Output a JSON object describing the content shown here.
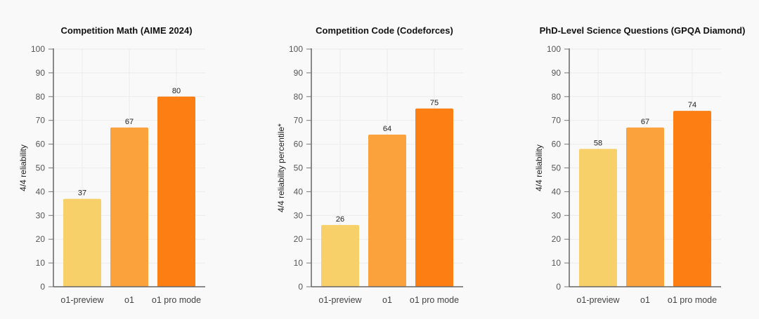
{
  "chart_data": [
    {
      "type": "bar",
      "title": "Competition Math (AIME 2024)",
      "ylabel": "4/4 reliability",
      "xlabel": "",
      "categories": [
        "o1-preview",
        "o1",
        "o1 pro mode"
      ],
      "values": [
        37,
        67,
        80
      ],
      "ylim": [
        0,
        100
      ],
      "yticks": [
        0,
        10,
        20,
        30,
        40,
        50,
        60,
        70,
        80,
        90,
        100
      ],
      "grid": true
    },
    {
      "type": "bar",
      "title": "Competition Code (Codeforces)",
      "ylabel": "4/4 reliability percentile*",
      "xlabel": "",
      "categories": [
        "o1-preview",
        "o1",
        "o1 pro mode"
      ],
      "values": [
        26,
        64,
        75
      ],
      "ylim": [
        0,
        100
      ],
      "yticks": [
        0,
        10,
        20,
        30,
        40,
        50,
        60,
        70,
        80,
        90,
        100
      ],
      "grid": true
    },
    {
      "type": "bar",
      "title": "PhD-Level Science Questions (GPQA Diamond)",
      "ylabel": "4/4 reliability",
      "xlabel": "",
      "categories": [
        "o1-preview",
        "o1",
        "o1 pro mode"
      ],
      "values": [
        58,
        67,
        74
      ],
      "ylim": [
        0,
        100
      ],
      "yticks": [
        0,
        10,
        20,
        30,
        40,
        50,
        60,
        70,
        80,
        90,
        100
      ],
      "grid": true
    }
  ],
  "colors": [
    "#f8d06a",
    "#fca23c",
    "#fd7f13"
  ]
}
